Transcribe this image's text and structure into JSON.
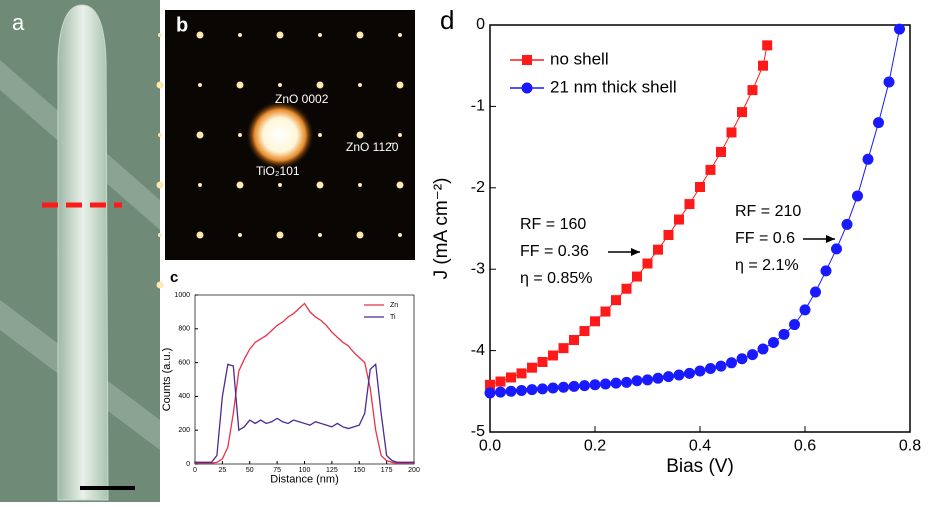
{
  "panel_a": {
    "label": "a"
  },
  "panel_b": {
    "label": "b",
    "spots": [
      "ZnO 0002",
      "ZnO 112̄0",
      "TiO₂101"
    ]
  },
  "chart_data": [
    {
      "type": "line",
      "label": "c",
      "xlabel": "Distance (nm)",
      "ylabel": "Counts (a.u.)",
      "xlim": [
        0,
        200
      ],
      "xticks": [
        0,
        25,
        50,
        75,
        100,
        125,
        150,
        175,
        200
      ],
      "ylim": [
        0,
        1000
      ],
      "yticks": [
        0,
        200,
        400,
        600,
        800,
        1000
      ],
      "legend": "upper right",
      "x": [
        0,
        5,
        10,
        15,
        20,
        25,
        30,
        35,
        40,
        45,
        50,
        55,
        60,
        65,
        70,
        75,
        80,
        85,
        90,
        95,
        100,
        105,
        110,
        115,
        120,
        125,
        130,
        135,
        140,
        145,
        150,
        155,
        160,
        165,
        170,
        175,
        180,
        185,
        190,
        195,
        200
      ],
      "series": [
        {
          "name": "Zn",
          "color": "#e8314a",
          "values": [
            5,
            5,
            5,
            5,
            10,
            30,
            100,
            300,
            550,
            620,
            680,
            720,
            740,
            760,
            790,
            820,
            840,
            870,
            890,
            920,
            950,
            900,
            870,
            850,
            820,
            780,
            750,
            720,
            700,
            660,
            630,
            600,
            450,
            200,
            50,
            20,
            10,
            5,
            5,
            5,
            5
          ]
        },
        {
          "name": "Ti",
          "color": "#4b2a93",
          "values": [
            10,
            10,
            10,
            10,
            50,
            400,
            590,
            580,
            200,
            220,
            260,
            240,
            260,
            240,
            250,
            270,
            250,
            240,
            260,
            250,
            240,
            230,
            250,
            240,
            230,
            220,
            240,
            220,
            210,
            220,
            230,
            300,
            560,
            590,
            300,
            50,
            20,
            10,
            10,
            10,
            10
          ]
        }
      ]
    },
    {
      "type": "line",
      "label": "d",
      "xlabel": "Bias (V)",
      "ylabel": "J (mA cm⁻²)",
      "xlim": [
        0,
        0.8
      ],
      "xticks": [
        {
          "value": 0,
          "label": "0.0"
        },
        0.2,
        0.4,
        0.6,
        0.8
      ],
      "ylim": [
        -5,
        0
      ],
      "yticks": [
        0,
        -1,
        -2,
        -3,
        -4,
        -5
      ],
      "legend": "upper left",
      "annotations": [
        "RF = 160",
        "FF = 0.36",
        "η = 0.85%",
        "RF = 210",
        "FF = 0.6",
        "η = 2.1%"
      ],
      "series": [
        {
          "name": "no shell",
          "color": "#ff1a1a",
          "marker": "square",
          "x": [
            0,
            0.02,
            0.04,
            0.06,
            0.08,
            0.1,
            0.12,
            0.14,
            0.16,
            0.18,
            0.2,
            0.22,
            0.24,
            0.26,
            0.28,
            0.3,
            0.32,
            0.34,
            0.36,
            0.38,
            0.4,
            0.42,
            0.44,
            0.46,
            0.48,
            0.5,
            0.52,
            0.528
          ],
          "values": [
            -4.42,
            -4.38,
            -4.33,
            -4.28,
            -4.21,
            -4.14,
            -4.06,
            -3.97,
            -3.87,
            -3.76,
            -3.64,
            -3.52,
            -3.38,
            -3.24,
            -3.09,
            -2.93,
            -2.76,
            -2.58,
            -2.39,
            -2.2,
            -1.99,
            -1.78,
            -1.56,
            -1.32,
            -1.07,
            -0.8,
            -0.5,
            -0.25
          ]
        },
        {
          "name": "21 nm thick shell",
          "color": "#1a1aff",
          "marker": "circle",
          "x": [
            0,
            0.02,
            0.04,
            0.06,
            0.08,
            0.1,
            0.12,
            0.14,
            0.16,
            0.18,
            0.2,
            0.22,
            0.24,
            0.26,
            0.28,
            0.3,
            0.32,
            0.34,
            0.36,
            0.38,
            0.4,
            0.42,
            0.44,
            0.46,
            0.48,
            0.5,
            0.52,
            0.54,
            0.56,
            0.58,
            0.6,
            0.62,
            0.64,
            0.66,
            0.68,
            0.7,
            0.72,
            0.74,
            0.76,
            0.78
          ],
          "values": [
            -4.52,
            -4.51,
            -4.5,
            -4.49,
            -4.48,
            -4.47,
            -4.46,
            -4.45,
            -4.44,
            -4.43,
            -4.42,
            -4.41,
            -4.4,
            -4.39,
            -4.37,
            -4.36,
            -4.34,
            -4.32,
            -4.3,
            -4.28,
            -4.25,
            -4.22,
            -4.19,
            -4.15,
            -4.1,
            -4.05,
            -3.98,
            -3.9,
            -3.8,
            -3.68,
            -3.5,
            -3.28,
            -3.02,
            -2.75,
            -2.45,
            -2.1,
            -1.65,
            -1.2,
            -0.7,
            -0.05
          ]
        }
      ]
    }
  ]
}
